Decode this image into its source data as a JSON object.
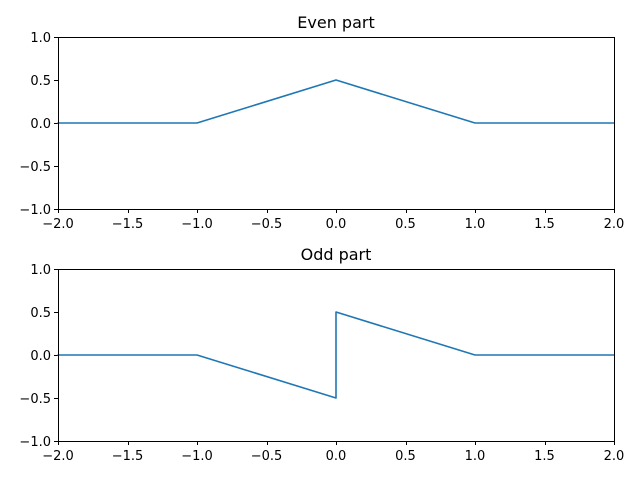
{
  "chart_data": [
    {
      "type": "line",
      "title": "Even part",
      "xlabel": "",
      "ylabel": "",
      "xlim": [
        -2.0,
        2.0
      ],
      "ylim": [
        -1.0,
        1.0
      ],
      "xticks": [
        -2.0,
        -1.5,
        -1.0,
        -0.5,
        0.0,
        0.5,
        1.0,
        1.5,
        2.0
      ],
      "xtick_labels": [
        "−2.0",
        "−1.5",
        "−1.0",
        "−0.5",
        "0.0",
        "0.5",
        "1.0",
        "1.5",
        "2.0"
      ],
      "yticks": [
        -1.0,
        -0.5,
        0.0,
        0.5,
        1.0
      ],
      "ytick_labels": [
        "−1.0",
        "−0.5",
        "0.0",
        "0.5",
        "1.0"
      ],
      "grid": false,
      "series": [
        {
          "color": "#1f77b4",
          "x": [
            -2.0,
            -1.0,
            0.0,
            1.0,
            2.0
          ],
          "y": [
            0.0,
            0.0,
            0.5,
            0.0,
            0.0
          ]
        }
      ]
    },
    {
      "type": "line",
      "title": "Odd part",
      "xlabel": "",
      "ylabel": "",
      "xlim": [
        -2.0,
        2.0
      ],
      "ylim": [
        -1.0,
        1.0
      ],
      "xticks": [
        -2.0,
        -1.5,
        -1.0,
        -0.5,
        0.0,
        0.5,
        1.0,
        1.5,
        2.0
      ],
      "xtick_labels": [
        "−2.0",
        "−1.5",
        "−1.0",
        "−0.5",
        "0.0",
        "0.5",
        "1.0",
        "1.5",
        "2.0"
      ],
      "yticks": [
        -1.0,
        -0.5,
        0.0,
        0.5,
        1.0
      ],
      "ytick_labels": [
        "−1.0",
        "−0.5",
        "0.0",
        "0.5",
        "1.0"
      ],
      "grid": false,
      "series": [
        {
          "color": "#1f77b4",
          "x": [
            -2.0,
            -1.0,
            0.0,
            0.0,
            1.0,
            2.0
          ],
          "y": [
            0.0,
            0.0,
            -0.5,
            0.5,
            0.0,
            0.0
          ]
        }
      ]
    }
  ]
}
